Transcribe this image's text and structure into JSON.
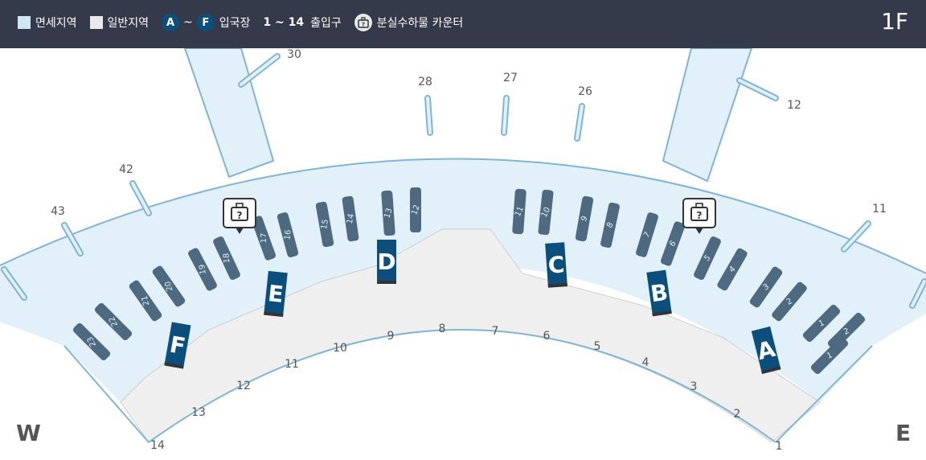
{
  "legend": {
    "duty_free": "면세지역",
    "general": "일반지역",
    "gate_from": "A",
    "gate_to": "F",
    "tilde": "~",
    "arrival_hall": "입국장",
    "exit_range": "1 ~ 14",
    "exit_label": "출입구",
    "lost_found": "분실수하물 카운터"
  },
  "floor": "1F",
  "compass": {
    "west": "W",
    "east": "E"
  },
  "gates": [
    "30",
    "28",
    "27",
    "26",
    "12",
    "42",
    "43",
    "11"
  ],
  "exits": [
    "14",
    "13",
    "12",
    "11",
    "10",
    "9",
    "8",
    "7",
    "6",
    "5",
    "4",
    "3",
    "2",
    "1"
  ],
  "carousels": [
    "23",
    "22",
    "21",
    "20",
    "19",
    "18",
    "17",
    "16",
    "15",
    "14",
    "13",
    "12",
    "11",
    "10",
    "9",
    "8",
    "7",
    "6",
    "5",
    "4",
    "3",
    "2",
    "1",
    "2",
    "1"
  ],
  "arrival_halls": [
    "F",
    "E",
    "D",
    "C",
    "B",
    "A"
  ],
  "colors": {
    "header": "#343a4a",
    "duty_free": "#e2f1f9",
    "outline": "#7fb5d6",
    "general": "#efefef",
    "carousel": "#4d6a80",
    "hall": "#0d4f7c"
  }
}
